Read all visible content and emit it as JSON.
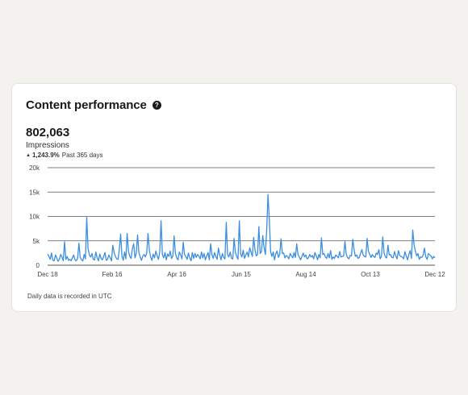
{
  "card": {
    "title": "Content performance",
    "help_icon": "question-circle-icon",
    "metric_value": "802,063",
    "metric_label": "Impressions",
    "trend_icon": "triangle-up-icon",
    "trend_value": "1,243.9%",
    "trend_period": "Past 365 days",
    "footnote": "Daily data is recorded in UTC"
  },
  "colors": {
    "line": "#3b8ee0",
    "grid": "#555555",
    "card_bg": "#ffffff",
    "page_bg": "#f3f2ef"
  },
  "chart_data": {
    "type": "line",
    "title": "",
    "xlabel": "",
    "ylabel": "",
    "ylim": [
      0,
      20000
    ],
    "y_ticks": [
      0,
      5000,
      10000,
      15000,
      20000
    ],
    "y_tick_labels": [
      "0",
      "5k",
      "10k",
      "15k",
      "20k"
    ],
    "x_tick_labels": [
      "Dec 18",
      "Feb 16",
      "Apr 16",
      "Jun 15",
      "Aug 14",
      "Oct 13",
      "Dec 12"
    ],
    "x_tick_days": [
      0,
      60,
      120,
      180,
      240,
      300,
      360
    ],
    "grid": true,
    "legend": "none",
    "series": [
      {
        "values": [
          2300,
          1800,
          1200,
          2500,
          1000,
          900,
          2100,
          1500,
          800,
          1200,
          2200,
          1700,
          900,
          4800,
          1200,
          1800,
          1000,
          1200,
          900,
          1500,
          2100,
          1100,
          900,
          1400,
          4500,
          1600,
          1100,
          900,
          2200,
          1300,
          9800,
          3500,
          2100,
          1700,
          2400,
          1200,
          1100,
          2700,
          1500,
          900,
          2300,
          1400,
          1100,
          1800,
          2600,
          1000,
          1200,
          2100,
          1500,
          900,
          4100,
          2600,
          1800,
          1300,
          1200,
          3200,
          6400,
          1900,
          1000,
          2700,
          1300,
          6500,
          2900,
          1800,
          1400,
          3400,
          4400,
          1500,
          2500,
          6200,
          2600,
          1700,
          1000,
          1900,
          2200,
          1700,
          2500,
          6500,
          3100,
          1700,
          1000,
          2300,
          1500,
          2900,
          1900,
          1200,
          2700,
          9100,
          2200,
          1500,
          2600,
          1100,
          2300,
          1800,
          2900,
          1400,
          1800,
          6000,
          2400,
          1500,
          1100,
          2700,
          2100,
          1300,
          4700,
          2200,
          1800,
          1200,
          2500,
          1500,
          900,
          2600,
          1400,
          2400,
          1600,
          2200,
          1900,
          1300,
          2700,
          1500,
          2400,
          1100,
          1900,
          2600,
          1100,
          4400,
          2200,
          1400,
          2600,
          1800,
          1200,
          3500,
          2100,
          1100,
          2400,
          1600,
          1300,
          8800,
          2200,
          1700,
          2700,
          1400,
          1300,
          5500,
          2600,
          1800,
          1200,
          9100,
          2400,
          1700,
          3100,
          1400,
          2100,
          2700,
          1700,
          3600,
          2700,
          1800,
          5700,
          3200,
          1900,
          2200,
          7900,
          2400,
          2800,
          6100,
          3600,
          2200,
          7300,
          14500,
          9400,
          2800,
          1800,
          2700,
          1100,
          2400,
          2900,
          1600,
          2300,
          5400,
          2400,
          2500,
          1500,
          2000,
          1800,
          1300,
          2400,
          1900,
          1500,
          2600,
          1600,
          4400,
          2200,
          1700,
          1100,
          1800,
          2500,
          1700,
          2100,
          1300,
          1500,
          2200,
          1700,
          2000,
          1300,
          2600,
          1900,
          1100,
          2200,
          1500,
          5600,
          2200,
          2400,
          1700,
          1400,
          2400,
          1500,
          3000,
          1200,
          1700,
          1400,
          2100,
          1800,
          1500,
          2800,
          1700,
          1800,
          1900,
          4900,
          2200,
          1600,
          1300,
          2000,
          1900,
          5300,
          3200,
          1800,
          2100,
          1400,
          1600,
          2400,
          3200,
          2100,
          1800,
          1700,
          5500,
          2900,
          2200,
          1600,
          2200,
          1800,
          1600,
          2500,
          2200,
          3200,
          1300,
          1800,
          5800,
          2500,
          1700,
          1500,
          4100,
          2100,
          2200,
          1600,
          1500,
          2800,
          1900,
          1300,
          3000,
          2000,
          1800,
          1700,
          1300,
          2800,
          1900,
          1100,
          2200,
          3000,
          1400,
          7200,
          4200,
          2900,
          1900,
          2400,
          1200,
          1700,
          1600,
          2100,
          3500,
          1700,
          1200,
          2400,
          2100,
          1900,
          1300,
          1800,
          1500
        ]
      }
    ]
  }
}
